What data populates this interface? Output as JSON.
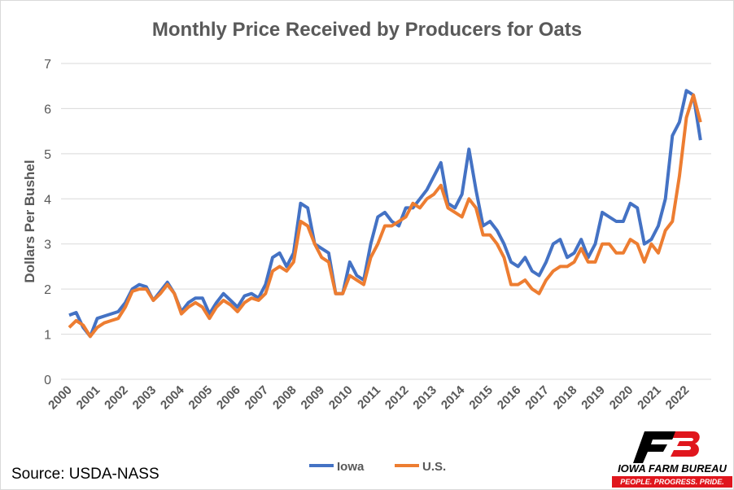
{
  "chart_data": {
    "type": "line",
    "title": "Monthly Price Received by Producers for Oats",
    "y_label": "Dollars Per Bushel",
    "source": "Source: USDA-NASS",
    "logo": {
      "name": "IOWA FARM BUREAU",
      "tagline": "PEOPLE. PROGRESS. PRIDE."
    },
    "xlim": [
      2000,
      2023
    ],
    "xticks": [
      2000,
      2001,
      2002,
      2003,
      2004,
      2005,
      2006,
      2007,
      2008,
      2009,
      2010,
      2011,
      2012,
      2013,
      2014,
      2015,
      2016,
      2017,
      2018,
      2019,
      2020,
      2021,
      2022
    ],
    "ylim": [
      0,
      7
    ],
    "yticks": [
      0,
      1,
      2,
      3,
      4,
      5,
      6,
      7
    ],
    "grid": true,
    "legend": "bottom",
    "x": [
      2000,
      2000.25,
      2000.5,
      2000.75,
      2001,
      2001.25,
      2001.5,
      2001.75,
      2002,
      2002.25,
      2002.5,
      2002.75,
      2003,
      2003.25,
      2003.5,
      2003.75,
      2004,
      2004.25,
      2004.5,
      2004.75,
      2005,
      2005.25,
      2005.5,
      2005.75,
      2006,
      2006.25,
      2006.5,
      2006.75,
      2007,
      2007.25,
      2007.5,
      2007.75,
      2008,
      2008.25,
      2008.5,
      2008.75,
      2009,
      2009.25,
      2009.5,
      2009.75,
      2010,
      2010.25,
      2010.5,
      2010.75,
      2011,
      2011.25,
      2011.5,
      2011.75,
      2012,
      2012.25,
      2012.5,
      2012.75,
      2013,
      2013.25,
      2013.5,
      2013.75,
      2014,
      2014.25,
      2014.5,
      2014.75,
      2015,
      2015.25,
      2015.5,
      2015.75,
      2016,
      2016.25,
      2016.5,
      2016.75,
      2017,
      2017.25,
      2017.5,
      2017.75,
      2018,
      2018.25,
      2018.5,
      2018.75,
      2019,
      2019.25,
      2019.5,
      2019.75,
      2020,
      2020.25,
      2020.5,
      2020.75,
      2021,
      2021.25,
      2021.5,
      2021.75,
      2022,
      2022.25,
      2022.5
    ],
    "series": [
      {
        "name": "Iowa",
        "color": "#4472c4",
        "values": [
          1.42,
          1.48,
          1.15,
          0.95,
          1.35,
          1.4,
          1.45,
          1.5,
          1.7,
          2.0,
          2.1,
          2.05,
          1.75,
          1.95,
          2.15,
          1.9,
          1.5,
          1.7,
          1.8,
          1.8,
          1.45,
          1.7,
          1.9,
          1.75,
          1.6,
          1.85,
          1.9,
          1.8,
          2.1,
          2.7,
          2.8,
          2.5,
          2.8,
          3.9,
          3.8,
          3.0,
          2.9,
          2.8,
          1.9,
          1.9,
          2.6,
          2.3,
          2.2,
          3.0,
          3.6,
          3.7,
          3.5,
          3.4,
          3.8,
          3.8,
          4.0,
          4.2,
          4.5,
          4.8,
          3.9,
          3.8,
          4.1,
          5.1,
          4.2,
          3.4,
          3.5,
          3.3,
          3.0,
          2.6,
          2.5,
          2.7,
          2.4,
          2.3,
          2.6,
          3.0,
          3.1,
          2.7,
          2.8,
          3.1,
          2.7,
          3.0,
          3.7,
          3.6,
          3.5,
          3.5,
          3.9,
          3.8,
          3.0,
          3.1,
          3.4,
          4.0,
          5.4,
          5.7,
          6.4,
          6.3,
          5.3
        ]
      },
      {
        "name": "U.S.",
        "color": "#ed7d31",
        "values": [
          1.15,
          1.3,
          1.2,
          0.95,
          1.15,
          1.25,
          1.3,
          1.35,
          1.6,
          1.95,
          2.0,
          2.0,
          1.75,
          1.9,
          2.1,
          1.9,
          1.45,
          1.6,
          1.7,
          1.6,
          1.35,
          1.6,
          1.75,
          1.65,
          1.5,
          1.7,
          1.8,
          1.75,
          1.9,
          2.4,
          2.5,
          2.4,
          2.6,
          3.5,
          3.4,
          3.0,
          2.7,
          2.6,
          1.9,
          1.9,
          2.3,
          2.2,
          2.1,
          2.7,
          3.0,
          3.4,
          3.4,
          3.5,
          3.6,
          3.9,
          3.8,
          4.0,
          4.1,
          4.3,
          3.8,
          3.7,
          3.6,
          4.0,
          3.8,
          3.2,
          3.2,
          3.0,
          2.7,
          2.1,
          2.1,
          2.2,
          2.0,
          1.9,
          2.2,
          2.4,
          2.5,
          2.5,
          2.6,
          2.9,
          2.6,
          2.6,
          3.0,
          3.0,
          2.8,
          2.8,
          3.1,
          3.0,
          2.6,
          3.0,
          2.8,
          3.3,
          3.5,
          4.5,
          5.8,
          6.3,
          5.7
        ]
      }
    ]
  }
}
